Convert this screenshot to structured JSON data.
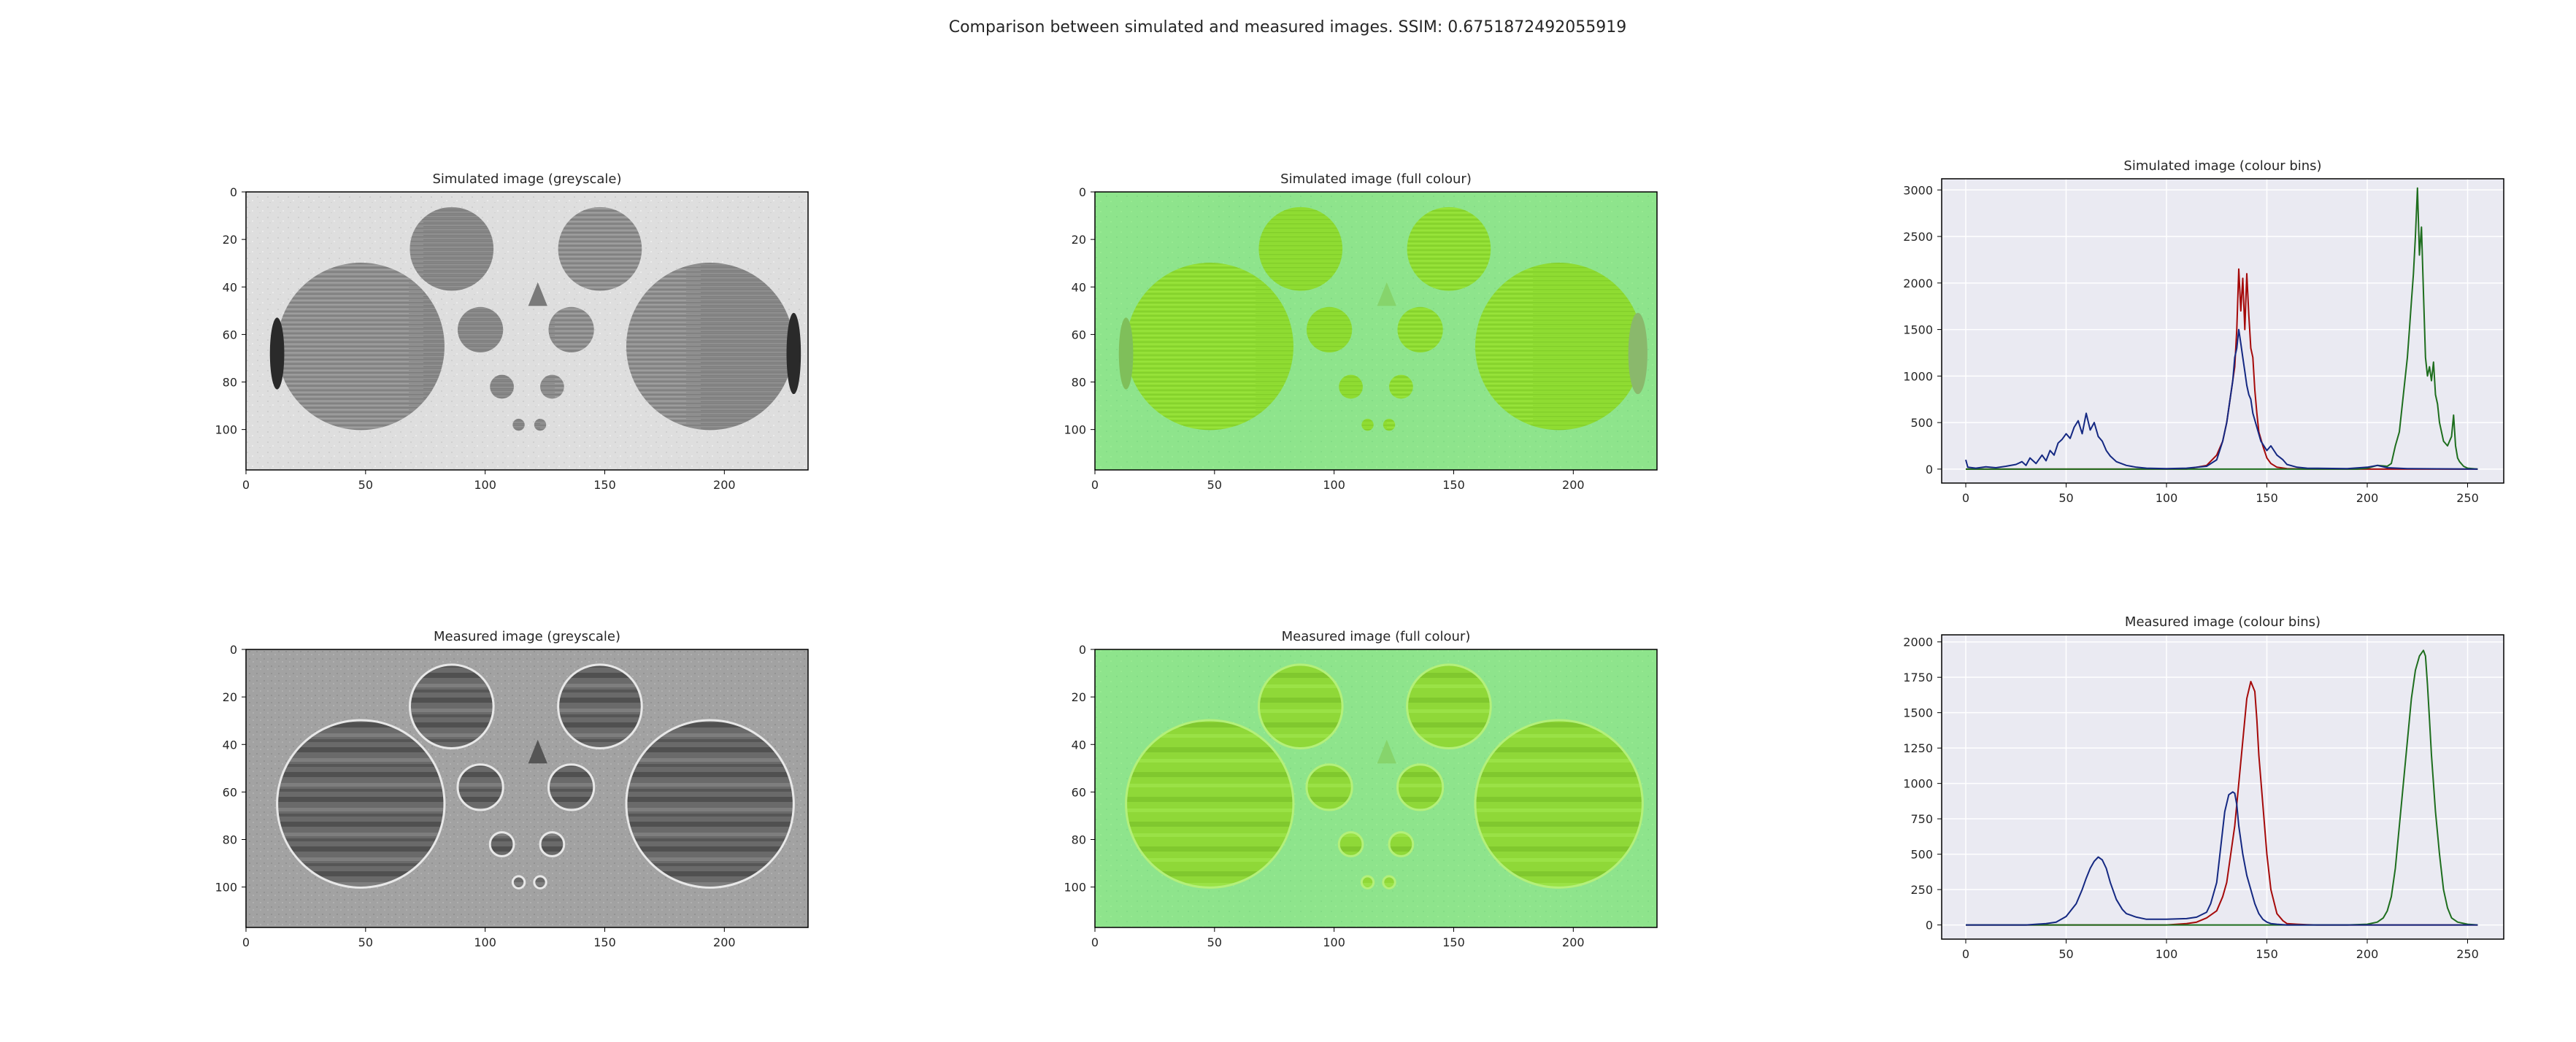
{
  "figure": {
    "suptitle": "Comparison between simulated and measured images. SSIM: 0.6751872492055919"
  },
  "panels": [
    {
      "key": "sim_grey",
      "title": "Simulated image (greyscale)",
      "kind": "image",
      "style": "grey",
      "source": "simulated"
    },
    {
      "key": "sim_color",
      "title": "Simulated image (full colour)",
      "kind": "image",
      "style": "color",
      "source": "simulated"
    },
    {
      "key": "sim_hist",
      "title": "Simulated image (colour bins)",
      "kind": "histogram"
    },
    {
      "key": "meas_grey",
      "title": "Measured image (greyscale)",
      "kind": "image",
      "style": "grey",
      "source": "measured"
    },
    {
      "key": "meas_color",
      "title": "Measured image (full colour)",
      "kind": "image",
      "style": "color",
      "source": "measured"
    },
    {
      "key": "meas_hist",
      "title": "Measured image (colour bins)",
      "kind": "histogram"
    }
  ],
  "colors": {
    "red": "#a50a0a",
    "green": "#1e6e1e",
    "blue": "#142882",
    "hist_background": "#eaeaf2",
    "grid": "#ffffff"
  },
  "chart_data": [
    {
      "type": "image",
      "title": "Simulated image (greyscale)",
      "xlim": [
        0,
        235
      ],
      "ylim": [
        117,
        0
      ],
      "xticks": [
        0,
        50,
        100,
        150,
        200
      ],
      "yticks": [
        0,
        20,
        40,
        60,
        80,
        100
      ]
    },
    {
      "type": "image",
      "title": "Simulated image (full colour)",
      "xlim": [
        0,
        235
      ],
      "ylim": [
        117,
        0
      ],
      "xticks": [
        0,
        50,
        100,
        150,
        200
      ],
      "yticks": [
        0,
        20,
        40,
        60,
        80,
        100
      ]
    },
    {
      "type": "line",
      "title": "Simulated image (colour bins)",
      "xlim": [
        -12,
        268
      ],
      "ylim": [
        -150,
        3120
      ],
      "xticks": [
        0,
        50,
        100,
        150,
        200,
        250
      ],
      "yticks": [
        0,
        500,
        1000,
        1500,
        2000,
        2500,
        3000
      ],
      "grid": true,
      "series": [
        {
          "color": "red",
          "x": [
            0,
            110,
            120,
            125,
            128,
            130,
            132,
            134,
            135,
            136,
            137,
            138,
            139,
            140,
            141,
            142,
            143,
            144,
            145,
            146,
            148,
            150,
            152,
            155,
            160,
            170,
            255
          ],
          "values": [
            0,
            0,
            40,
            150,
            300,
            500,
            800,
            1100,
            1500,
            2150,
            1700,
            2050,
            1500,
            2100,
            1650,
            1300,
            1200,
            850,
            600,
            400,
            250,
            120,
            60,
            20,
            5,
            0,
            0
          ]
        },
        {
          "color": "green",
          "x": [
            0,
            195,
            200,
            205,
            210,
            212,
            214,
            216,
            218,
            220,
            221,
            222,
            223,
            224,
            225,
            226,
            227,
            228,
            229,
            230,
            231,
            232,
            233,
            234,
            235,
            236,
            238,
            240,
            242,
            243,
            244,
            245,
            246,
            248,
            250,
            255
          ],
          "values": [
            0,
            0,
            10,
            40,
            30,
            60,
            250,
            400,
            800,
            1200,
            1500,
            1800,
            2100,
            2500,
            3020,
            2300,
            2600,
            1900,
            1200,
            1000,
            1100,
            950,
            1150,
            800,
            700,
            500,
            300,
            250,
            350,
            580,
            250,
            120,
            80,
            30,
            10,
            0
          ]
        },
        {
          "color": "blue",
          "x": [
            0,
            1,
            5,
            10,
            15,
            20,
            25,
            28,
            30,
            32,
            35,
            38,
            40,
            42,
            44,
            46,
            48,
            50,
            52,
            54,
            56,
            58,
            60,
            62,
            64,
            66,
            68,
            70,
            72,
            75,
            80,
            85,
            90,
            100,
            110,
            120,
            125,
            128,
            130,
            132,
            133,
            134,
            135,
            136,
            137,
            138,
            139,
            140,
            141,
            142,
            143,
            145,
            147,
            150,
            152,
            155,
            158,
            160,
            165,
            170,
            190,
            200,
            205,
            210,
            220,
            255
          ],
          "values": [
            100,
            20,
            10,
            25,
            15,
            30,
            50,
            80,
            40,
            120,
            60,
            150,
            90,
            200,
            150,
            280,
            320,
            380,
            330,
            450,
            520,
            380,
            600,
            420,
            500,
            350,
            300,
            200,
            140,
            80,
            40,
            20,
            10,
            5,
            10,
            30,
            100,
            300,
            500,
            800,
            950,
            1200,
            1300,
            1500,
            1350,
            1200,
            1050,
            900,
            800,
            750,
            600,
            450,
            300,
            200,
            250,
            150,
            100,
            50,
            20,
            10,
            5,
            20,
            40,
            15,
            5,
            0
          ]
        }
      ]
    },
    {
      "type": "image",
      "title": "Measured image (greyscale)",
      "xlim": [
        0,
        235
      ],
      "ylim": [
        117,
        0
      ],
      "xticks": [
        0,
        50,
        100,
        150,
        200
      ],
      "yticks": [
        0,
        20,
        40,
        60,
        80,
        100
      ]
    },
    {
      "type": "image",
      "title": "Measured image (full colour)",
      "xlim": [
        0,
        235
      ],
      "ylim": [
        117,
        0
      ],
      "xticks": [
        0,
        50,
        100,
        150,
        200
      ],
      "yticks": [
        0,
        20,
        40,
        60,
        80,
        100
      ]
    },
    {
      "type": "line",
      "title": "Measured image (colour bins)",
      "xlim": [
        -12,
        268
      ],
      "ylim": [
        -100,
        2050
      ],
      "xticks": [
        0,
        50,
        100,
        150,
        200,
        250
      ],
      "yticks": [
        0,
        250,
        500,
        750,
        1000,
        1250,
        1500,
        1750,
        2000
      ],
      "grid": true,
      "series": [
        {
          "color": "red",
          "x": [
            0,
            100,
            110,
            115,
            120,
            125,
            128,
            130,
            132,
            134,
            136,
            138,
            140,
            142,
            144,
            145,
            146,
            148,
            150,
            152,
            155,
            158,
            160,
            165,
            170,
            175,
            255
          ],
          "values": [
            0,
            0,
            10,
            20,
            50,
            100,
            200,
            300,
            500,
            700,
            1000,
            1300,
            1600,
            1720,
            1650,
            1450,
            1200,
            850,
            500,
            250,
            80,
            30,
            10,
            5,
            2,
            0,
            0
          ]
        },
        {
          "color": "green",
          "x": [
            0,
            190,
            200,
            205,
            208,
            210,
            212,
            214,
            216,
            218,
            220,
            222,
            224,
            226,
            228,
            229,
            230,
            231,
            232,
            234,
            236,
            238,
            240,
            242,
            245,
            250,
            255
          ],
          "values": [
            0,
            0,
            5,
            20,
            50,
            100,
            200,
            400,
            700,
            1000,
            1300,
            1600,
            1800,
            1900,
            1940,
            1900,
            1700,
            1450,
            1200,
            800,
            500,
            250,
            120,
            50,
            20,
            5,
            0
          ]
        },
        {
          "color": "blue",
          "x": [
            0,
            30,
            40,
            45,
            50,
            55,
            58,
            60,
            62,
            64,
            66,
            68,
            70,
            72,
            75,
            78,
            80,
            85,
            90,
            100,
            110,
            115,
            120,
            122,
            125,
            127,
            129,
            131,
            133,
            134,
            135,
            136,
            138,
            140,
            142,
            144,
            146,
            148,
            150,
            152,
            155,
            160,
            165,
            170,
            255
          ],
          "values": [
            0,
            0,
            10,
            20,
            60,
            150,
            250,
            330,
            400,
            450,
            480,
            460,
            400,
            300,
            180,
            110,
            80,
            55,
            40,
            40,
            45,
            55,
            90,
            150,
            300,
            550,
            800,
            920,
            940,
            930,
            850,
            700,
            500,
            350,
            250,
            150,
            80,
            40,
            20,
            10,
            5,
            0,
            0,
            0,
            0
          ]
        }
      ]
    }
  ]
}
